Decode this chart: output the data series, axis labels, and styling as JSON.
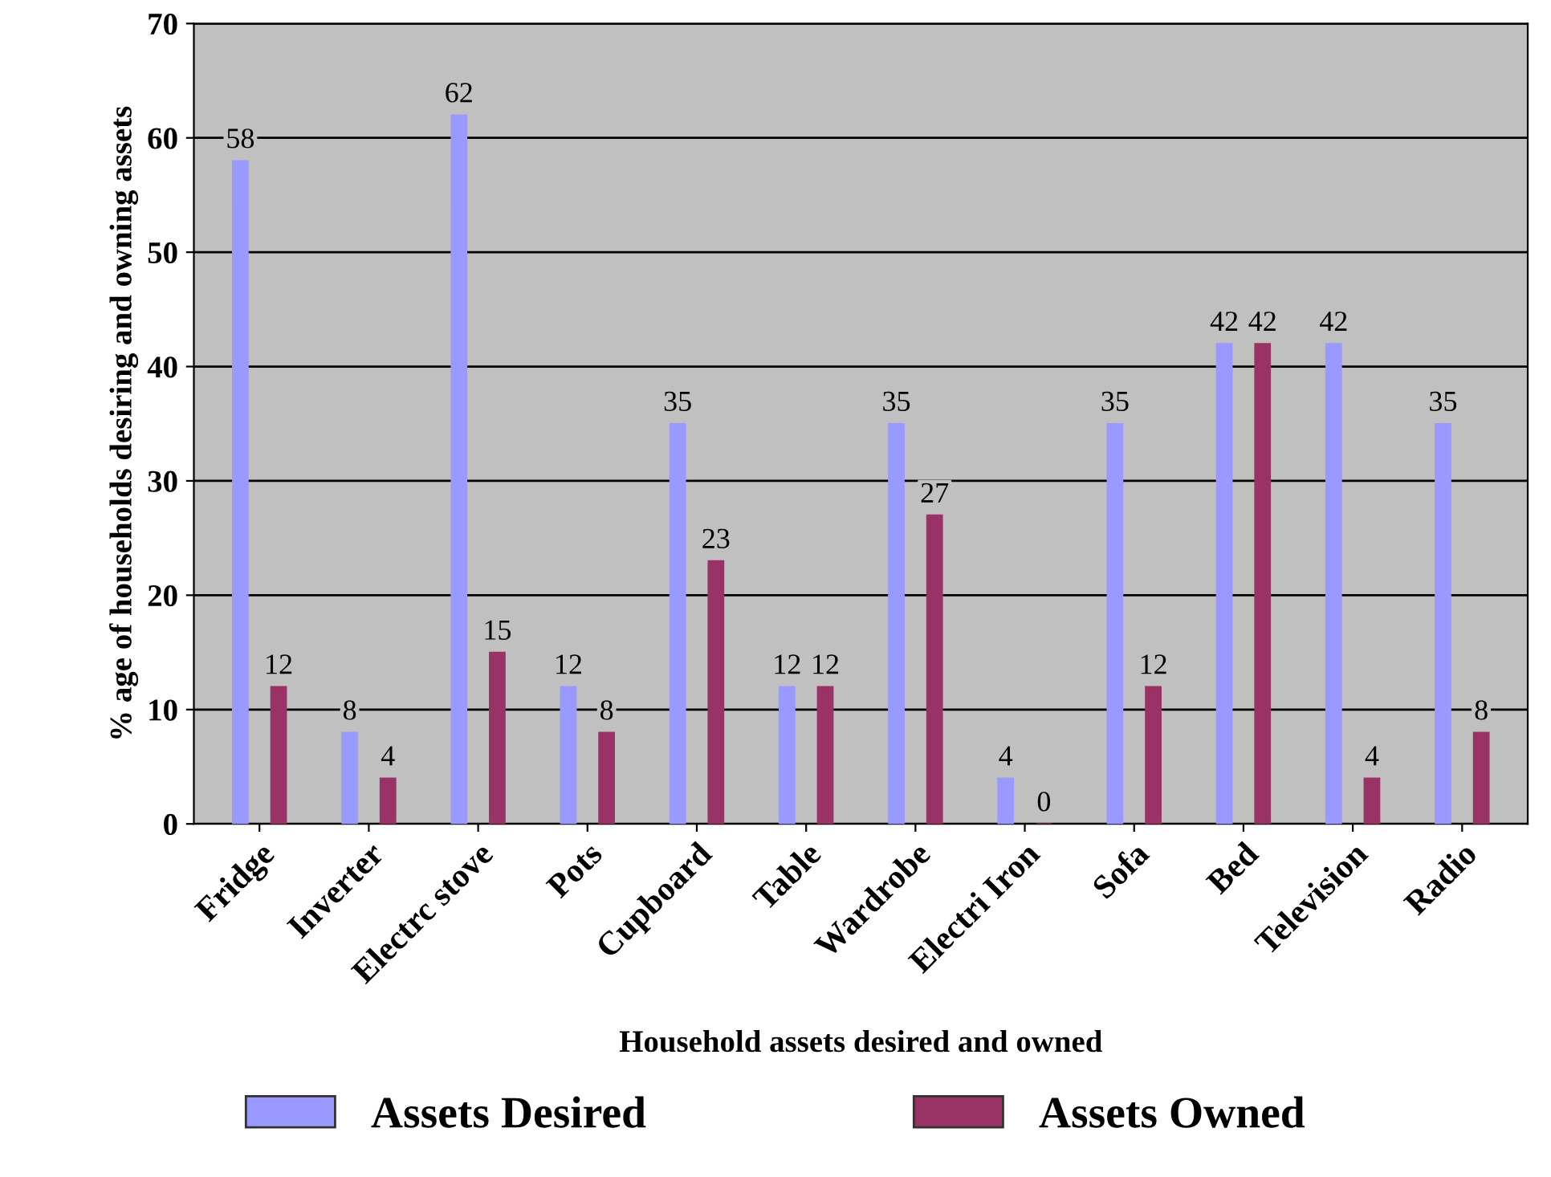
{
  "chart_data": {
    "type": "bar",
    "xlabel": "Household assets desired and owned",
    "ylabel": "% age of households desiring and owning assets",
    "categories": [
      "Fridge",
      "Inverter",
      "Electrc stove",
      "Pots",
      "Cupboard",
      "Table",
      "Wardrobe",
      "Electri Iron",
      "Sofa",
      "Bed",
      "Television",
      "Radio"
    ],
    "series": [
      {
        "name": "Assets Desired",
        "color": "#9999ff",
        "values": [
          58,
          8,
          62,
          12,
          35,
          12,
          35,
          4,
          35,
          42,
          42,
          35
        ]
      },
      {
        "name": "Assets Owned",
        "color": "#993366",
        "values": [
          12,
          4,
          15,
          8,
          23,
          12,
          27,
          0,
          12,
          42,
          4,
          8
        ]
      }
    ],
    "ylim": [
      0,
      70
    ],
    "yticks": [
      0,
      10,
      20,
      30,
      40,
      50,
      60,
      70
    ],
    "grid": "y",
    "legend": "bottom",
    "data_labels": true
  }
}
